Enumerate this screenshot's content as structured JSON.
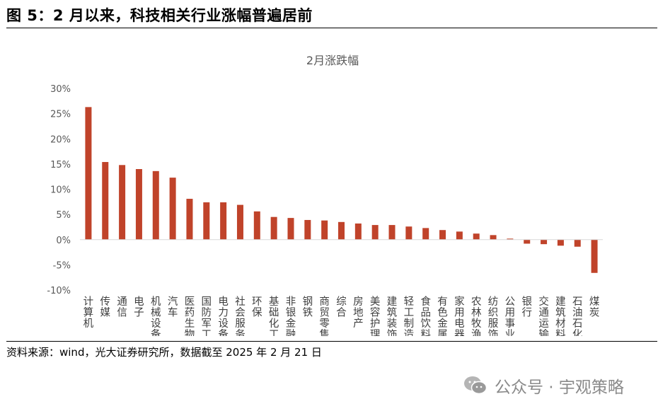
{
  "figure": {
    "title": "图 5：2 月以来，科技相关行业涨幅普遍居前",
    "source": "资料来源：wind，光大证券研究所，数据截至 2025 年 2 月 21 日"
  },
  "watermark": {
    "text": "公众号 · 宇观策略",
    "icon": "wechat-icon"
  },
  "chart_data": {
    "type": "bar",
    "title": "2月涨跌幅",
    "xlabel": "",
    "ylabel": "",
    "ylim": [
      -10,
      30
    ],
    "yticks": [
      30,
      25,
      20,
      15,
      10,
      5,
      0,
      -5,
      -10
    ],
    "ytick_labels": [
      "30%",
      "25%",
      "20%",
      "15%",
      "10%",
      "5%",
      "0%",
      "-5%",
      "-10%"
    ],
    "grid": false,
    "legend": "none",
    "bar_color": "#c0432a",
    "categories": [
      "计算机",
      "传媒",
      "通信",
      "电子",
      "机械设备",
      "汽车",
      "医药生物",
      "国防军工",
      "电力设备",
      "社会服务",
      "环保",
      "基础化工",
      "非银金融",
      "钢铁",
      "商贸零售",
      "综合",
      "房地产",
      "美容护理",
      "建筑装饰",
      "轻工制造",
      "食品饮料",
      "有色金属",
      "家用电器",
      "农林牧渔",
      "纺织服饰",
      "公用事业",
      "银行",
      "交通运输",
      "建筑材料",
      "石油石化",
      "煤炭"
    ],
    "values": [
      26.3,
      15.4,
      14.8,
      14.0,
      13.6,
      12.3,
      8.1,
      7.4,
      7.4,
      6.9,
      5.6,
      4.5,
      4.3,
      3.9,
      3.8,
      3.5,
      3.2,
      2.9,
      2.9,
      2.6,
      2.3,
      1.9,
      1.6,
      1.2,
      0.9,
      0.2,
      -0.8,
      -0.9,
      -1.2,
      -1.4,
      -6.6
    ]
  }
}
